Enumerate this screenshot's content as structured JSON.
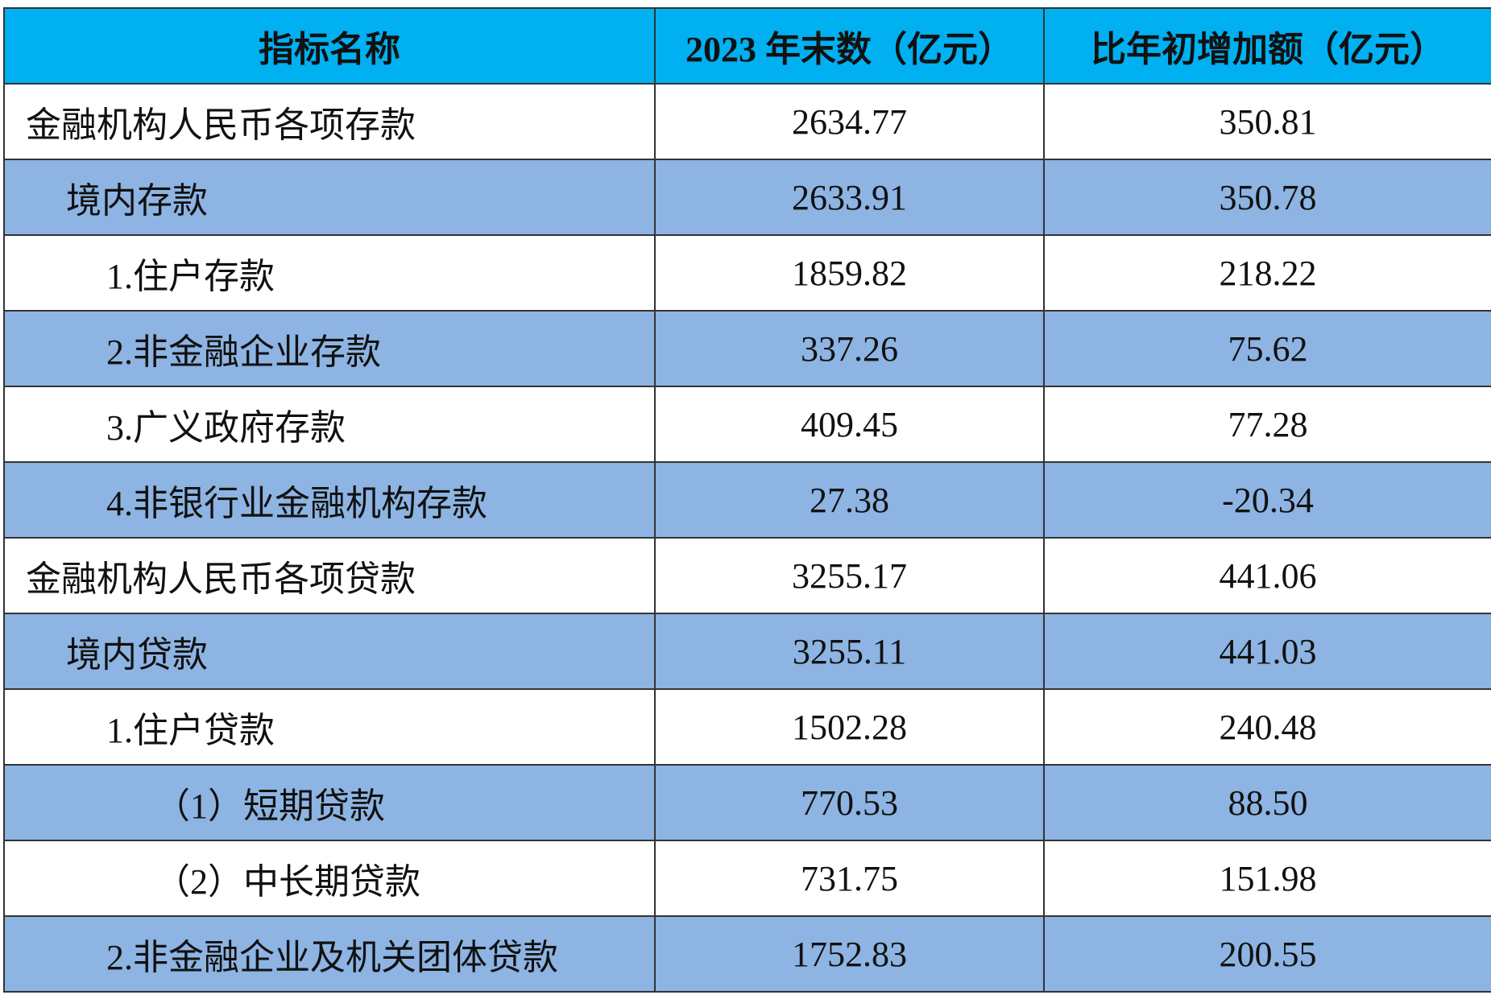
{
  "table": {
    "header": [
      "指标名称",
      "2023 年末数（亿元）",
      "比年初增加额（亿元）"
    ],
    "rows": [
      [
        "金融机构人民币各项存款",
        "2634.77",
        "350.81"
      ],
      [
        "境内存款",
        "2633.91",
        "350.78"
      ],
      [
        "1.住户存款",
        "1859.82",
        "218.22"
      ],
      [
        "2.非金融企业存款",
        "337.26",
        "75.62"
      ],
      [
        "3.广义政府存款",
        "409.45",
        "77.28"
      ],
      [
        "4.非银行业金融机构存款",
        "27.38",
        "-20.34"
      ],
      [
        "金融机构人民币各项贷款",
        "3255.17",
        "441.06"
      ],
      [
        "境内贷款",
        "3255.11",
        "441.03"
      ],
      [
        "1.住户贷款",
        "1502.28",
        "240.48"
      ],
      [
        "（1）短期贷款",
        "770.53",
        "88.50"
      ],
      [
        "（2）中长期贷款",
        "731.75",
        "151.98"
      ],
      [
        "2.非金融企业及机关团体贷款",
        "1752.83",
        "200.55"
      ]
    ]
  }
}
